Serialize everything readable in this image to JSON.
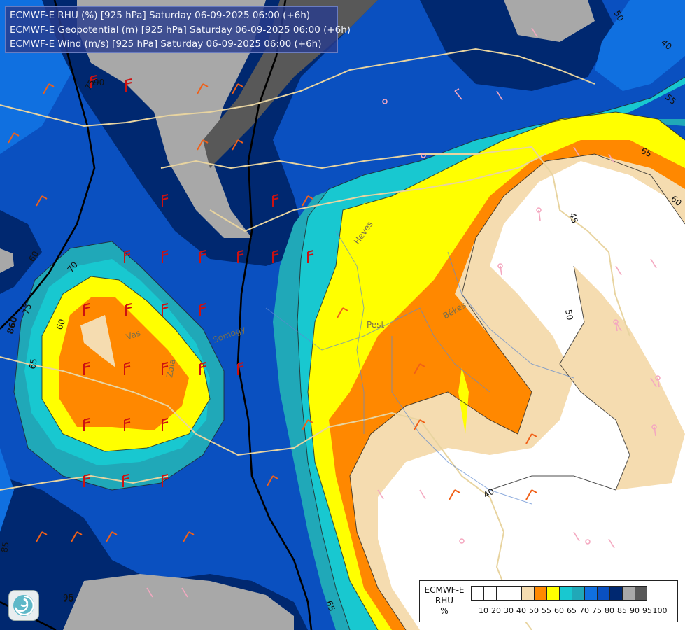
{
  "title": {
    "lines": [
      "ECMWF-E RHU (%) [925 hPa] Saturday 06-09-2025 06:00 (+6h)",
      "ECMWF-E Geopotential (m) [925 hPa] Saturday 06-09-2025 06:00 (+6h)",
      "ECMWF-E Wind (m/s) [925 hPa] Saturday 06-09-2025 06:00 (+6h)"
    ]
  },
  "legend": {
    "title_lines": [
      "ECMWF-E",
      "RHU",
      "%"
    ],
    "ticks": [
      "10",
      "20",
      "30",
      "40",
      "50",
      "55",
      "60",
      "65",
      "70",
      "75",
      "80",
      "85",
      "90",
      "95",
      "100"
    ],
    "colors": [
      "#ffffff",
      "#ffffff",
      "#ffffff",
      "#ffffff",
      "#f5dcb0",
      "#ff8800",
      "#ffff00",
      "#18c8d0",
      "#20a8b8",
      "#1070e0",
      "#0a50c0",
      "#002870",
      "#a8a8a8",
      "#585858"
    ]
  },
  "contour_labels": {
    "rh": [
      "50",
      "40",
      "55",
      "65",
      "60",
      "45",
      "50",
      "40",
      "70",
      "75",
      "60",
      "65",
      "60",
      "85",
      "75",
      "65",
      "95",
      "90",
      "70"
    ],
    "geopotential": [
      "860"
    ]
  },
  "place_labels": [
    "Heves",
    "Pest",
    "Békés",
    "Vas",
    "Zala",
    "Somogy"
  ],
  "logo": "ecmwf-logo"
}
